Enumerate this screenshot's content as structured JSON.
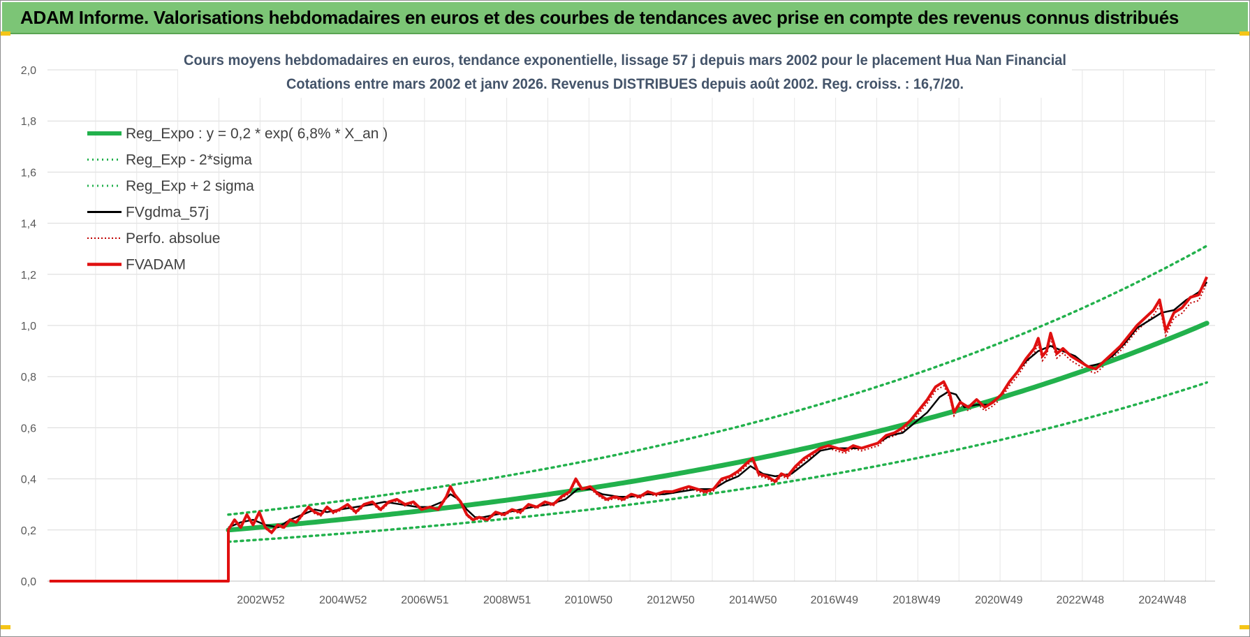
{
  "banner": {
    "title": "ADAM Informe. Valorisations hebdomadaires en euros et des courbes de tendances avec prise en compte des revenus connus distribués"
  },
  "chart_data": {
    "type": "line",
    "title": "Cours moyens hebdomadaires en euros, tendance exponentielle, lissage 57 j depuis mars 2002 pour le placement Hua Nan Financial",
    "subtitle": "Cotations entre mars 2002 et janv 2026. Revenus DISTRIBUES depuis août 2002. Reg. croiss. : 16,7/20.",
    "xlabel": "",
    "ylabel": "",
    "ylim": [
      0,
      2
    ],
    "y_ticks": [
      "0,0",
      "0,2",
      "0,4",
      "0,6",
      "0,8",
      "1,0",
      "1,2",
      "1,4",
      "1,6",
      "1,8",
      "2,0"
    ],
    "x_ticks": [
      "2002W52",
      "2004W52",
      "2006W51",
      "2008W51",
      "2010W50",
      "2012W50",
      "2014W50",
      "2016W49",
      "2018W49",
      "2020W49",
      "2022W48",
      "2024W48"
    ],
    "x_tick_years": [
      2002.99,
      2004.99,
      2006.98,
      2008.98,
      2010.96,
      2012.96,
      2014.96,
      2016.94,
      2018.94,
      2020.94,
      2022.92,
      2024.92
    ],
    "x_range": [
      1997.8,
      2026.2
    ],
    "data_start": 2002.2,
    "grid": true,
    "legend_position": "top-left",
    "regression": {
      "a": 0.2,
      "rate": 0.068,
      "start": 2002.2,
      "sigma_factor_upper": 1.3,
      "sigma_factor_lower": 0.77
    },
    "series": [
      {
        "name": "Reg_Expo : y = 0,2 * exp( 6,8% *  X_an )",
        "style": "thick-solid",
        "color": "#22b14c"
      },
      {
        "name": "Reg_Exp - 2*sigma",
        "style": "dotted",
        "color": "#22b14c"
      },
      {
        "name": "Reg_Exp + 2 sigma",
        "style": "dotted",
        "color": "#22b14c"
      },
      {
        "name": "FVgdma_57j",
        "style": "solid",
        "color": "#000000",
        "x": [
          2002.2,
          2002.5,
          2002.8,
          2003.1,
          2003.4,
          2003.7,
          2004.0,
          2004.3,
          2004.6,
          2004.9,
          2005.3,
          2005.7,
          2006.0,
          2006.4,
          2006.8,
          2007.1,
          2007.4,
          2007.6,
          2007.8,
          2008.0,
          2008.2,
          2008.4,
          2008.7,
          2009.0,
          2009.3,
          2009.6,
          2010.0,
          2010.4,
          2010.7,
          2011.0,
          2011.3,
          2011.7,
          2012.0,
          2012.4,
          2012.8,
          2013.2,
          2013.6,
          2014.0,
          2014.3,
          2014.6,
          2014.9,
          2015.2,
          2015.5,
          2015.9,
          2016.3,
          2016.6,
          2016.9,
          2017.2,
          2017.6,
          2018.0,
          2018.3,
          2018.6,
          2018.9,
          2019.2,
          2019.5,
          2019.7,
          2019.9,
          2020.1,
          2020.4,
          2020.7,
          2021.0,
          2021.3,
          2021.6,
          2021.9,
          2022.2,
          2022.5,
          2022.8,
          2023.1,
          2023.4,
          2023.7,
          2024.0,
          2024.3,
          2024.6,
          2024.9,
          2025.2,
          2025.5,
          2025.8,
          2026.0
        ],
        "y": [
          0.21,
          0.23,
          0.24,
          0.22,
          0.21,
          0.24,
          0.26,
          0.28,
          0.27,
          0.28,
          0.29,
          0.3,
          0.31,
          0.3,
          0.29,
          0.29,
          0.31,
          0.34,
          0.32,
          0.28,
          0.25,
          0.25,
          0.26,
          0.27,
          0.28,
          0.29,
          0.3,
          0.32,
          0.36,
          0.36,
          0.34,
          0.33,
          0.33,
          0.34,
          0.34,
          0.35,
          0.36,
          0.36,
          0.39,
          0.41,
          0.45,
          0.42,
          0.41,
          0.42,
          0.47,
          0.51,
          0.52,
          0.52,
          0.52,
          0.54,
          0.57,
          0.58,
          0.62,
          0.66,
          0.72,
          0.74,
          0.73,
          0.68,
          0.69,
          0.69,
          0.73,
          0.8,
          0.86,
          0.9,
          0.92,
          0.9,
          0.88,
          0.84,
          0.85,
          0.88,
          0.93,
          0.99,
          1.02,
          1.05,
          1.06,
          1.1,
          1.13,
          1.17
        ]
      },
      {
        "name": "Perfo. absolue",
        "style": "dotted",
        "color": "#c00000"
      },
      {
        "name": "FVADAM",
        "style": "thick-solid",
        "color": "#e01010",
        "x": [
          2002.2,
          2002.35,
          2002.5,
          2002.65,
          2002.8,
          2002.95,
          2003.1,
          2003.25,
          2003.4,
          2003.55,
          2003.7,
          2003.85,
          2004.0,
          2004.15,
          2004.3,
          2004.45,
          2004.6,
          2004.75,
          2004.9,
          2005.1,
          2005.3,
          2005.5,
          2005.7,
          2005.9,
          2006.1,
          2006.3,
          2006.5,
          2006.7,
          2006.9,
          2007.1,
          2007.3,
          2007.5,
          2007.6,
          2007.7,
          2007.85,
          2008.0,
          2008.15,
          2008.3,
          2008.5,
          2008.7,
          2008.9,
          2009.1,
          2009.3,
          2009.5,
          2009.7,
          2009.9,
          2010.1,
          2010.3,
          2010.5,
          2010.65,
          2010.8,
          2011.0,
          2011.2,
          2011.4,
          2011.6,
          2011.8,
          2012.0,
          2012.2,
          2012.4,
          2012.6,
          2012.8,
          2013.0,
          2013.2,
          2013.4,
          2013.6,
          2013.8,
          2014.0,
          2014.2,
          2014.4,
          2014.6,
          2014.8,
          2014.95,
          2015.1,
          2015.3,
          2015.5,
          2015.65,
          2015.8,
          2016.0,
          2016.2,
          2016.4,
          2016.6,
          2016.8,
          2017.0,
          2017.2,
          2017.4,
          2017.6,
          2017.8,
          2018.0,
          2018.2,
          2018.4,
          2018.6,
          2018.8,
          2019.0,
          2019.2,
          2019.4,
          2019.6,
          2019.75,
          2019.85,
          2020.0,
          2020.2,
          2020.4,
          2020.6,
          2020.8,
          2021.0,
          2021.2,
          2021.4,
          2021.6,
          2021.8,
          2021.9,
          2022.0,
          2022.1,
          2022.2,
          2022.35,
          2022.5,
          2022.7,
          2022.9,
          2023.1,
          2023.3,
          2023.5,
          2023.7,
          2023.9,
          2024.1,
          2024.3,
          2024.5,
          2024.7,
          2024.85,
          2025.0,
          2025.2,
          2025.4,
          2025.6,
          2025.8,
          2026.0
        ],
        "y": [
          0.2,
          0.24,
          0.21,
          0.26,
          0.22,
          0.27,
          0.21,
          0.19,
          0.22,
          0.21,
          0.24,
          0.23,
          0.26,
          0.29,
          0.27,
          0.26,
          0.29,
          0.27,
          0.28,
          0.3,
          0.27,
          0.3,
          0.31,
          0.28,
          0.31,
          0.32,
          0.3,
          0.31,
          0.28,
          0.29,
          0.28,
          0.33,
          0.37,
          0.34,
          0.31,
          0.26,
          0.24,
          0.25,
          0.24,
          0.27,
          0.26,
          0.28,
          0.27,
          0.3,
          0.29,
          0.31,
          0.3,
          0.33,
          0.35,
          0.4,
          0.36,
          0.37,
          0.34,
          0.32,
          0.33,
          0.32,
          0.34,
          0.33,
          0.35,
          0.34,
          0.35,
          0.35,
          0.36,
          0.37,
          0.36,
          0.35,
          0.36,
          0.4,
          0.41,
          0.43,
          0.46,
          0.48,
          0.42,
          0.41,
          0.39,
          0.42,
          0.41,
          0.45,
          0.48,
          0.5,
          0.52,
          0.53,
          0.52,
          0.51,
          0.53,
          0.52,
          0.53,
          0.54,
          0.57,
          0.58,
          0.6,
          0.63,
          0.67,
          0.71,
          0.76,
          0.78,
          0.73,
          0.66,
          0.7,
          0.68,
          0.71,
          0.68,
          0.7,
          0.73,
          0.78,
          0.82,
          0.87,
          0.91,
          0.95,
          0.88,
          0.9,
          0.97,
          0.89,
          0.91,
          0.88,
          0.86,
          0.84,
          0.83,
          0.86,
          0.89,
          0.92,
          0.96,
          1.0,
          1.03,
          1.06,
          1.1,
          0.98,
          1.05,
          1.07,
          1.11,
          1.12,
          1.19
        ]
      }
    ]
  }
}
